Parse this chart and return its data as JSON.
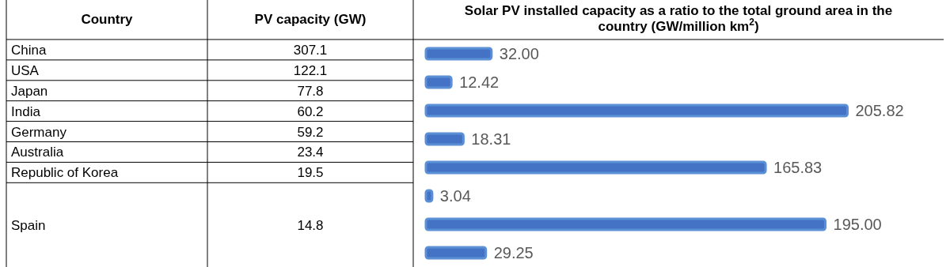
{
  "chart_data": [
    {
      "type": "other",
      "xlabel": "Country",
      "ylabel": "PV capacity (GW)",
      "categories": [
        "China",
        "USA",
        "Japan",
        "India",
        "Germany",
        "Australia",
        "Republic of Korea",
        "Spain"
      ],
      "values": [
        307.1,
        122.1,
        77.8,
        60.2,
        59.2,
        23.4,
        19.5,
        14.8
      ],
      "data_labels": true
    },
    {
      "type": "bar",
      "orientation": "horizontal",
      "title": "Solar PV installed capacity as a ratio to the total ground area in the country (GW/million km$^{2}$)",
      "categories": [
        null,
        null,
        null,
        null,
        null,
        null,
        null,
        null
      ],
      "values": [
        32.0,
        12.42,
        205.82,
        18.31,
        165.83,
        3.04,
        195.0,
        29.25
      ],
      "value_labels": [
        "32.00",
        "12.42",
        "205.82",
        "18.31",
        "165.83",
        "3.04",
        "195.00",
        "29.25"
      ],
      "color": "#4472c4",
      "tick_labels": false
    }
  ]
}
